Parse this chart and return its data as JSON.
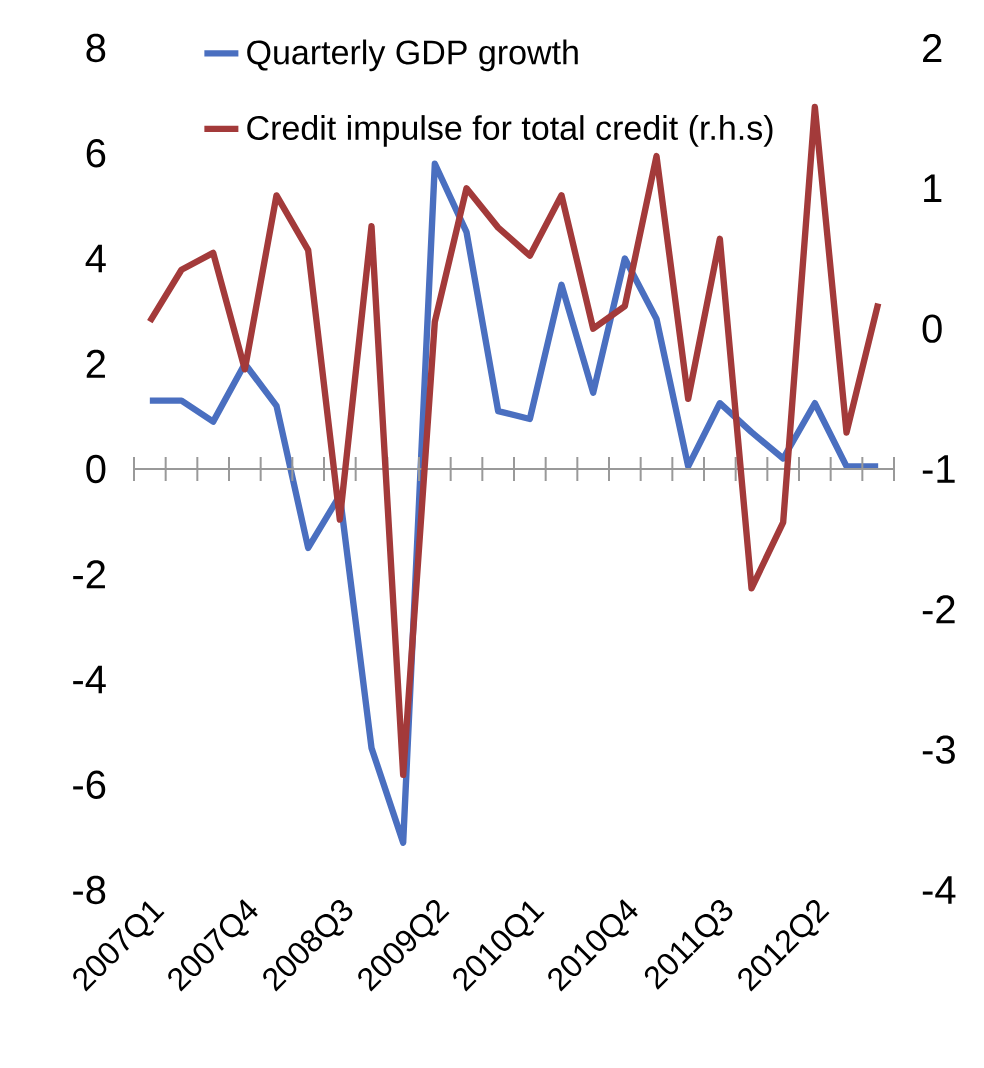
{
  "chart_data": {
    "type": "line",
    "categories": [
      "2007Q1",
      null,
      null,
      "2007Q4",
      null,
      null,
      "2008Q3",
      null,
      null,
      "2009Q2",
      null,
      null,
      "2010Q1",
      null,
      null,
      "2010Q4",
      null,
      null,
      "2011Q3",
      null,
      null,
      "2012Q2",
      null,
      null
    ],
    "series": [
      {
        "name": "Quarterly GDP growth",
        "color": "#4a6fc0",
        "values": [
          1.3,
          1.3,
          0.9,
          2.0,
          1.2,
          -1.5,
          -0.5,
          -5.3,
          -7.1,
          5.8,
          4.5,
          1.1,
          0.95,
          3.5,
          1.45,
          4.0,
          2.85,
          0.05,
          1.25,
          0.7,
          0.2,
          1.25,
          0.05,
          0.05
        ]
      },
      {
        "name": "Credit impulse for total credit (r.h.s)",
        "color": "#a33a3a",
        "axis": "y2",
        "values": [
          0.05,
          0.42,
          0.54,
          -0.29,
          0.95,
          0.56,
          -1.36,
          0.73,
          -3.18,
          0.05,
          1.0,
          0.72,
          0.52,
          0.95,
          0.0,
          0.16,
          1.23,
          -0.5,
          0.64,
          -1.85,
          -1.38,
          1.58,
          -0.74,
          0.18
        ]
      }
    ],
    "ylim": [
      -8,
      8
    ],
    "yticks": [
      -8,
      -6,
      -4,
      -2,
      0,
      2,
      4,
      6,
      8
    ],
    "y2lim": [
      -4,
      2
    ],
    "y2ticks": [
      -4,
      -3,
      -2,
      -1,
      0,
      1,
      2
    ],
    "ref_lines": [
      {
        "axis": "y",
        "value": 0,
        "color": "#999999"
      }
    ],
    "legend": "top left",
    "grid": false,
    "marker": "none",
    "line_style": "solid"
  }
}
